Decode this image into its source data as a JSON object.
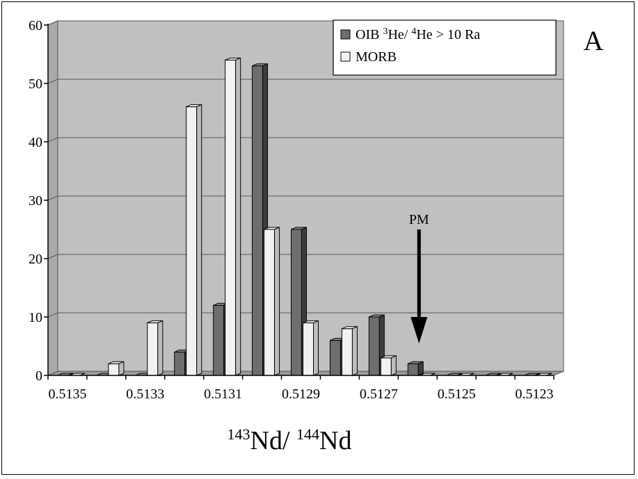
{
  "chart_data": {
    "type": "bar",
    "categories": [
      "0.5135",
      "0.5134",
      "0.5133",
      "0.5132",
      "0.5131",
      "0.5130",
      "0.5129",
      "0.5128",
      "0.5127",
      "0.5126",
      "0.5125",
      "0.5124",
      "0.5123"
    ],
    "x_tick_labels": [
      "0.5135",
      "0.5133",
      "0.5131",
      "0.5129",
      "0.5127",
      "0.5125",
      "0.5123"
    ],
    "series": [
      {
        "name": "OIB 3He/ 4He > 10 Ra",
        "color": "#6e6e6e",
        "values": [
          0,
          0,
          0,
          4,
          12,
          53,
          25,
          6,
          10,
          2,
          0,
          0,
          0
        ]
      },
      {
        "name": "MORB",
        "color": "#f2f2f2",
        "values": [
          0,
          2,
          9,
          46,
          54,
          25,
          9,
          8,
          3,
          0,
          0,
          0,
          0
        ]
      }
    ],
    "legend": {
      "items": [
        {
          "prefix": "OIB ",
          "sup1": "3",
          "mid": "He/  ",
          "sup2": "4",
          "suffix": "He > 10 Ra"
        },
        {
          "text": "MORB"
        }
      ],
      "placement": "top-right"
    },
    "ylim": [
      0,
      60
    ],
    "y_ticks": [
      0,
      10,
      20,
      30,
      40,
      50,
      60
    ],
    "grid": true,
    "plot_background": "#c0c0c0",
    "xlabel": {
      "sup1": "143",
      "t1": "Nd/  ",
      "sup2": "144",
      "t2": "Nd"
    },
    "annotation": {
      "text": "PM",
      "category": "0.5126"
    },
    "panel_label": "A"
  }
}
